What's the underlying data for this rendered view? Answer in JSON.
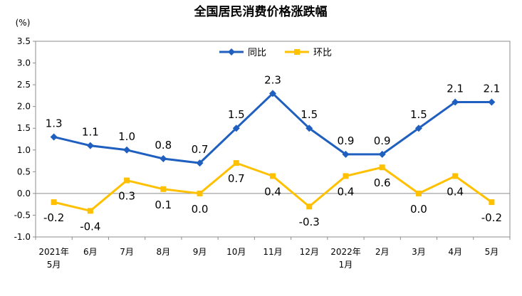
{
  "chart_data": {
    "type": "line",
    "title": "全国居民消费价格涨跌幅",
    "ylabel": "(%)",
    "xlabel": "",
    "ylim": [
      -1.0,
      3.5
    ],
    "yticks": [
      "3.5",
      "3.0",
      "2.5",
      "2.0",
      "1.5",
      "1.0",
      "0.5",
      "0.0",
      "-0.5",
      "-1.0"
    ],
    "ytick_values": [
      3.5,
      3.0,
      2.5,
      2.0,
      1.5,
      1.0,
      0.5,
      0.0,
      -0.5,
      -1.0
    ],
    "categories": [
      [
        "2021年",
        "5月"
      ],
      [
        "6月"
      ],
      [
        "7月"
      ],
      [
        "8月"
      ],
      [
        "9月"
      ],
      [
        "10月"
      ],
      [
        "11月"
      ],
      [
        "12月"
      ],
      [
        "2022年",
        "1月"
      ],
      [
        "2月"
      ],
      [
        "3月"
      ],
      [
        "4月"
      ],
      [
        "5月"
      ]
    ],
    "grid": false,
    "legend_position": "top-center",
    "series": [
      {
        "name": "同比",
        "color": "#1f5fbf",
        "marker": "diamond",
        "values": [
          1.3,
          1.1,
          1.0,
          0.8,
          0.7,
          1.5,
          2.3,
          1.5,
          0.9,
          0.9,
          1.5,
          2.1,
          2.1
        ],
        "labels": [
          "1.3",
          "1.1",
          "1.0",
          "0.8",
          "0.7",
          "1.5",
          "2.3",
          "1.5",
          "0.9",
          "0.9",
          "1.5",
          "2.1",
          "2.1"
        ],
        "label_side": [
          "above",
          "above",
          "above",
          "above",
          "above",
          "above",
          "above",
          "above",
          "above",
          "above",
          "above",
          "above",
          "above"
        ]
      },
      {
        "name": "环比",
        "color": "#ffc000",
        "marker": "square",
        "values": [
          -0.2,
          -0.4,
          0.3,
          0.1,
          0.0,
          0.7,
          0.4,
          -0.3,
          0.4,
          0.6,
          0.0,
          0.4,
          -0.2
        ],
        "labels": [
          "-0.2",
          "-0.4",
          "0.3",
          "0.1",
          "0.0",
          "0.7",
          "0.4",
          "-0.3",
          "0.4",
          "0.6",
          "0.0",
          "0.4",
          "-0.2"
        ],
        "label_side": [
          "below",
          "below",
          "below",
          "below",
          "below",
          "below",
          "below",
          "below",
          "below",
          "below",
          "below",
          "below",
          "below"
        ]
      }
    ]
  }
}
